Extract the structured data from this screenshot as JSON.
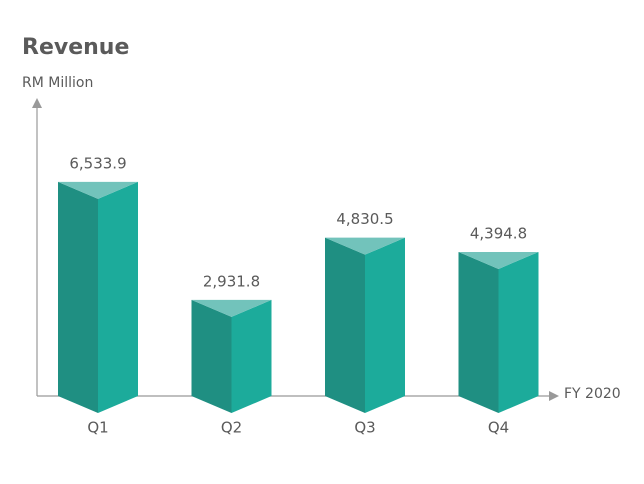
{
  "chart_data": {
    "type": "bar",
    "title": "Revenue",
    "y_label": "RM Million",
    "x_label": "FY 2020",
    "categories": [
      "Q1",
      "Q2",
      "Q3",
      "Q4"
    ],
    "values": [
      6533.9,
      2931.8,
      4830.5,
      4394.8
    ],
    "value_labels": [
      "6,533.9",
      "2,931.8",
      "4,830.5",
      "4,394.8"
    ],
    "colors": {
      "left": "#1f8f82",
      "right": "#1cab9b",
      "top": "#72c3bb"
    },
    "ylim": [
      0,
      9000
    ]
  }
}
